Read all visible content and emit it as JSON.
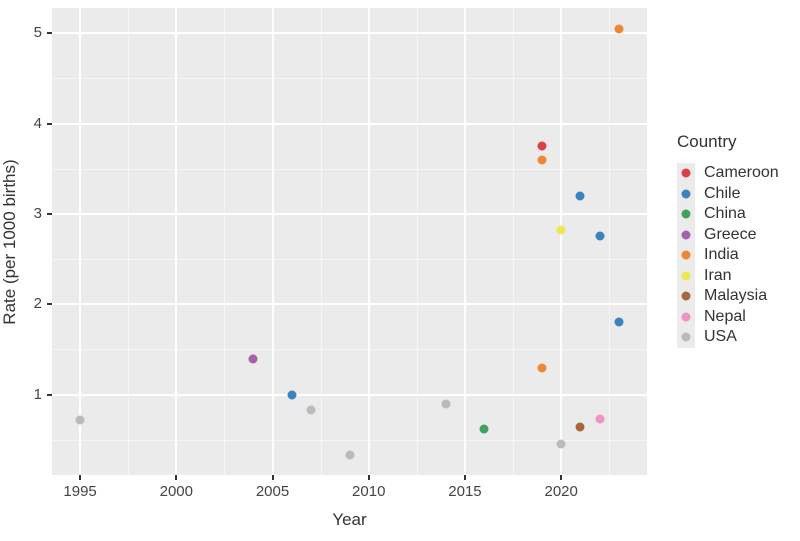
{
  "chart_data": {
    "type": "scatter",
    "title": "",
    "xlabel": "Year",
    "ylabel": "Rate (per 1000 births)",
    "legend_title": "Country",
    "legend_position": "right",
    "grid": true,
    "panel_bg": "#ebebeb",
    "grid_color": "#ffffff",
    "x_range": [
      1993.54,
      2024.46
    ],
    "y_range": [
      0.11,
      5.28
    ],
    "x_ticks": [
      1995,
      2000,
      2005,
      2010,
      2015,
      2020
    ],
    "x_minor_ticks": [
      1997.5,
      2002.5,
      2007.5,
      2012.5,
      2017.5,
      2022.5
    ],
    "y_ticks": [
      1,
      2,
      3,
      4,
      5
    ],
    "y_minor_ticks": [
      0.5,
      1.5,
      2.5,
      3.5,
      4.5
    ],
    "series": [
      {
        "name": "Cameroon",
        "color": "#d8434b",
        "points": [
          {
            "x": 2019,
            "y": 3.75
          }
        ]
      },
      {
        "name": "Chile",
        "color": "#3d82ba",
        "points": [
          {
            "x": 2006,
            "y": 1.0
          },
          {
            "x": 2021,
            "y": 3.2
          },
          {
            "x": 2022,
            "y": 2.76
          },
          {
            "x": 2023,
            "y": 1.8
          }
        ]
      },
      {
        "name": "China",
        "color": "#41a25b",
        "points": [
          {
            "x": 2016,
            "y": 0.62
          }
        ]
      },
      {
        "name": "Greece",
        "color": "#a562a8",
        "points": [
          {
            "x": 2004,
            "y": 1.39
          }
        ]
      },
      {
        "name": "India",
        "color": "#ee8733",
        "points": [
          {
            "x": 2019,
            "y": 3.6
          },
          {
            "x": 2019,
            "y": 1.3
          },
          {
            "x": 2023,
            "y": 5.05
          }
        ]
      },
      {
        "name": "Iran",
        "color": "#ece94f",
        "points": [
          {
            "x": 2020,
            "y": 2.82
          }
        ]
      },
      {
        "name": "Malaysia",
        "color": "#a9653e",
        "points": [
          {
            "x": 2021,
            "y": 0.64
          }
        ]
      },
      {
        "name": "Nepal",
        "color": "#ee93c3",
        "points": [
          {
            "x": 2022,
            "y": 0.73
          }
        ]
      },
      {
        "name": "USA",
        "color": "#bbbbbb",
        "points": [
          {
            "x": 1995,
            "y": 0.72
          },
          {
            "x": 2007,
            "y": 0.83
          },
          {
            "x": 2009,
            "y": 0.33
          },
          {
            "x": 2014,
            "y": 0.9
          },
          {
            "x": 2020,
            "y": 0.45
          }
        ]
      }
    ]
  },
  "style": {
    "tick_label_color": "#444444",
    "axis_title_color": "#333333",
    "legend_key_bg": "#ebebeb"
  }
}
